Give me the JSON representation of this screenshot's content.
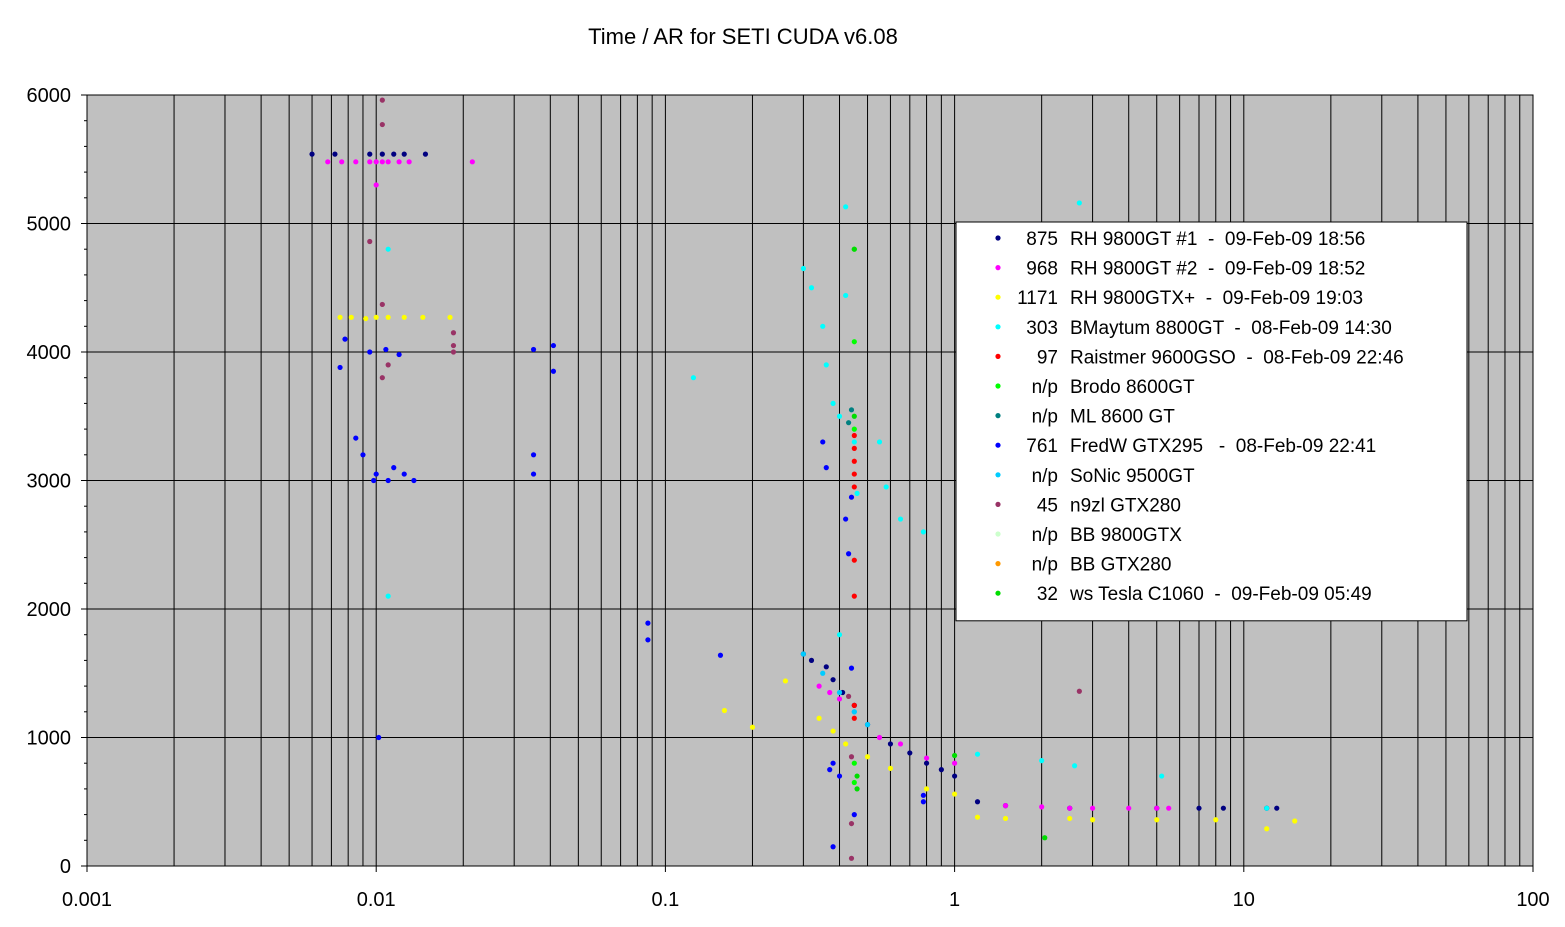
{
  "chart_data": {
    "type": "scatter",
    "title": "Time / AR for SETI CUDA v6.08",
    "xlabel": "",
    "ylabel": "",
    "x_scale": "log",
    "xlim": [
      0.001,
      100
    ],
    "ylim": [
      0,
      6000
    ],
    "x_ticks": [
      "0.001",
      "0.01",
      "0.1",
      "1",
      "10",
      "100"
    ],
    "y_ticks": [
      "0",
      "1000",
      "2000",
      "3000",
      "4000",
      "5000",
      "6000"
    ],
    "plot_background": "#c0c0c0",
    "grid": true,
    "legend_position": "right",
    "series": [
      {
        "name": "RH 9800GT #1  -  09-Feb-09 18:56",
        "count": "875",
        "color": "#000080",
        "points": [
          [
            0.006,
            5540
          ],
          [
            0.0072,
            5540
          ],
          [
            0.0095,
            5540
          ],
          [
            0.0105,
            5540
          ],
          [
            0.0115,
            5540
          ],
          [
            0.0125,
            5540
          ],
          [
            0.0148,
            5540
          ],
          [
            0.3,
            1650
          ],
          [
            0.32,
            1600
          ],
          [
            0.36,
            1550
          ],
          [
            0.38,
            1450
          ],
          [
            0.41,
            1350
          ],
          [
            0.45,
            1250
          ],
          [
            0.5,
            1100
          ],
          [
            0.6,
            950
          ],
          [
            0.7,
            880
          ],
          [
            0.8,
            800
          ],
          [
            0.9,
            750
          ],
          [
            1.0,
            700
          ],
          [
            1.2,
            500
          ],
          [
            1.5,
            470
          ],
          [
            2.5,
            450
          ],
          [
            5,
            450
          ],
          [
            7,
            450
          ],
          [
            8.5,
            450
          ],
          [
            12,
            450
          ],
          [
            13,
            450
          ]
        ]
      },
      {
        "name": "RH 9800GT #2  -  09-Feb-09 18:52",
        "count": "968",
        "color": "#ff00ff",
        "points": [
          [
            0.0068,
            5480
          ],
          [
            0.0076,
            5480
          ],
          [
            0.0085,
            5480
          ],
          [
            0.0095,
            5480
          ],
          [
            0.01,
            5480
          ],
          [
            0.0105,
            5480
          ],
          [
            0.011,
            5480
          ],
          [
            0.012,
            5480
          ],
          [
            0.013,
            5480
          ],
          [
            0.0215,
            5480
          ],
          [
            0.01,
            5300
          ],
          [
            0.34,
            1400
          ],
          [
            0.37,
            1350
          ],
          [
            0.4,
            1300
          ],
          [
            0.45,
            1200
          ],
          [
            0.55,
            1000
          ],
          [
            0.65,
            950
          ],
          [
            0.8,
            840
          ],
          [
            1.0,
            800
          ],
          [
            1.5,
            470
          ],
          [
            2.0,
            460
          ],
          [
            2.5,
            450
          ],
          [
            3.0,
            450
          ],
          [
            4.0,
            450
          ],
          [
            5.0,
            450
          ],
          [
            5.5,
            450
          ]
        ]
      },
      {
        "name": "RH 9800GTX+  -  09-Feb-09 19:03",
        "count": "1171",
        "color": "#ffff00",
        "points": [
          [
            0.0075,
            4270
          ],
          [
            0.0082,
            4270
          ],
          [
            0.0092,
            4260
          ],
          [
            0.01,
            4270
          ],
          [
            0.011,
            4270
          ],
          [
            0.0125,
            4270
          ],
          [
            0.0145,
            4270
          ],
          [
            0.018,
            4270
          ],
          [
            0.16,
            1210
          ],
          [
            0.2,
            1080
          ],
          [
            0.26,
            1440
          ],
          [
            0.34,
            1150
          ],
          [
            0.38,
            1050
          ],
          [
            0.42,
            950
          ],
          [
            0.5,
            850
          ],
          [
            0.6,
            760
          ],
          [
            0.8,
            600
          ],
          [
            1.0,
            560
          ],
          [
            1.2,
            380
          ],
          [
            1.5,
            370
          ],
          [
            2.5,
            370
          ],
          [
            3.0,
            360
          ],
          [
            5.0,
            360
          ],
          [
            8.0,
            360
          ],
          [
            12,
            290
          ],
          [
            15,
            350
          ]
        ]
      },
      {
        "name": "BMaytum 8800GT  -  08-Feb-09 14:30",
        "count": "303",
        "color": "#00ffff",
        "points": [
          [
            0.011,
            4800
          ],
          [
            0.011,
            2100
          ],
          [
            0.125,
            3800
          ],
          [
            0.3,
            4650
          ],
          [
            0.32,
            4500
          ],
          [
            0.35,
            4200
          ],
          [
            0.36,
            3900
          ],
          [
            0.38,
            3600
          ],
          [
            0.4,
            3500
          ],
          [
            0.42,
            5130
          ],
          [
            0.42,
            4440
          ],
          [
            0.45,
            3300
          ],
          [
            0.46,
            2900
          ],
          [
            0.55,
            3300
          ],
          [
            0.58,
            2950
          ],
          [
            0.65,
            2700
          ],
          [
            0.78,
            2600
          ],
          [
            0.4,
            1800
          ],
          [
            0.45,
            1200
          ],
          [
            1.2,
            870
          ],
          [
            2.0,
            820
          ],
          [
            2.6,
            780
          ],
          [
            2.7,
            5160
          ],
          [
            5.2,
            700
          ],
          [
            12,
            450
          ]
        ]
      },
      {
        "name": "Raistmer 9600GSO  -  08-Feb-09 22:46",
        "count": "97",
        "color": "#ff0000",
        "points": [
          [
            0.45,
            3350
          ],
          [
            0.45,
            3250
          ],
          [
            0.45,
            3150
          ],
          [
            0.45,
            3050
          ],
          [
            0.45,
            2950
          ],
          [
            0.45,
            2380
          ],
          [
            0.45,
            2100
          ],
          [
            0.45,
            1250
          ],
          [
            0.45,
            1150
          ]
        ]
      },
      {
        "name": "Brodo 8600GT",
        "count": "n/p",
        "color": "#00ff00",
        "points": [
          [
            0.45,
            4800
          ],
          [
            0.45,
            4080
          ],
          [
            0.45,
            3400
          ],
          [
            0.45,
            800
          ],
          [
            0.45,
            650
          ]
        ]
      },
      {
        "name": "ML 8600 GT",
        "count": "n/p",
        "color": "#008080",
        "points": [
          [
            0.43,
            3450
          ],
          [
            0.44,
            3550
          ]
        ]
      },
      {
        "name": "FredW GTX295   -  08-Feb-09 22:41",
        "count": "761",
        "color": "#0000ff",
        "points": [
          [
            0.0075,
            3880
          ],
          [
            0.0078,
            4100
          ],
          [
            0.0085,
            3330
          ],
          [
            0.009,
            3200
          ],
          [
            0.0095,
            4000
          ],
          [
            0.0098,
            3000
          ],
          [
            0.01,
            3050
          ],
          [
            0.0102,
            1000
          ],
          [
            0.0108,
            4020
          ],
          [
            0.011,
            3000
          ],
          [
            0.0115,
            3100
          ],
          [
            0.012,
            3980
          ],
          [
            0.0125,
            3050
          ],
          [
            0.0135,
            3000
          ],
          [
            0.035,
            4020
          ],
          [
            0.035,
            3200
          ],
          [
            0.035,
            3050
          ],
          [
            0.041,
            4050
          ],
          [
            0.041,
            3850
          ],
          [
            0.087,
            1890
          ],
          [
            0.087,
            1760
          ],
          [
            0.155,
            1640
          ],
          [
            0.35,
            3300
          ],
          [
            0.36,
            3100
          ],
          [
            0.37,
            750
          ],
          [
            0.38,
            800
          ],
          [
            0.4,
            700
          ],
          [
            0.42,
            2700
          ],
          [
            0.43,
            2430
          ],
          [
            0.44,
            1540
          ],
          [
            0.44,
            2870
          ],
          [
            0.45,
            400
          ],
          [
            0.38,
            150
          ],
          [
            0.78,
            550
          ],
          [
            0.78,
            500
          ]
        ]
      },
      {
        "name": "SoNic 9500GT",
        "count": "n/p",
        "color": "#00ccff",
        "points": [
          [
            0.3,
            1650
          ],
          [
            0.35,
            1500
          ],
          [
            0.4,
            1350
          ],
          [
            0.45,
            1200
          ],
          [
            0.5,
            1100
          ]
        ]
      },
      {
        "name": "n9zl GTX280",
        "count": "45",
        "color": "#993366",
        "points": [
          [
            0.0095,
            4860
          ],
          [
            0.0105,
            5960
          ],
          [
            0.0105,
            5770
          ],
          [
            0.0105,
            4370
          ],
          [
            0.0105,
            3800
          ],
          [
            0.011,
            3900
          ],
          [
            0.0185,
            4150
          ],
          [
            0.0185,
            4050
          ],
          [
            0.0185,
            4000
          ],
          [
            0.43,
            1320
          ],
          [
            0.44,
            850
          ],
          [
            0.44,
            330
          ],
          [
            0.44,
            60
          ],
          [
            2.7,
            1360
          ]
        ]
      },
      {
        "name": "BB 9800GTX",
        "count": "n/p",
        "color": "#ccffcc",
        "points": []
      },
      {
        "name": "BB GTX280",
        "count": "n/p",
        "color": "#ff9900",
        "points": []
      },
      {
        "name": "ws Tesla C1060  -  09-Feb-09 05:49",
        "count": "32",
        "color": "#00dd00",
        "points": [
          [
            0.45,
            4800
          ],
          [
            0.45,
            3500
          ],
          [
            0.46,
            700
          ],
          [
            0.46,
            600
          ],
          [
            1.0,
            860
          ],
          [
            2.05,
            220
          ]
        ]
      }
    ]
  }
}
